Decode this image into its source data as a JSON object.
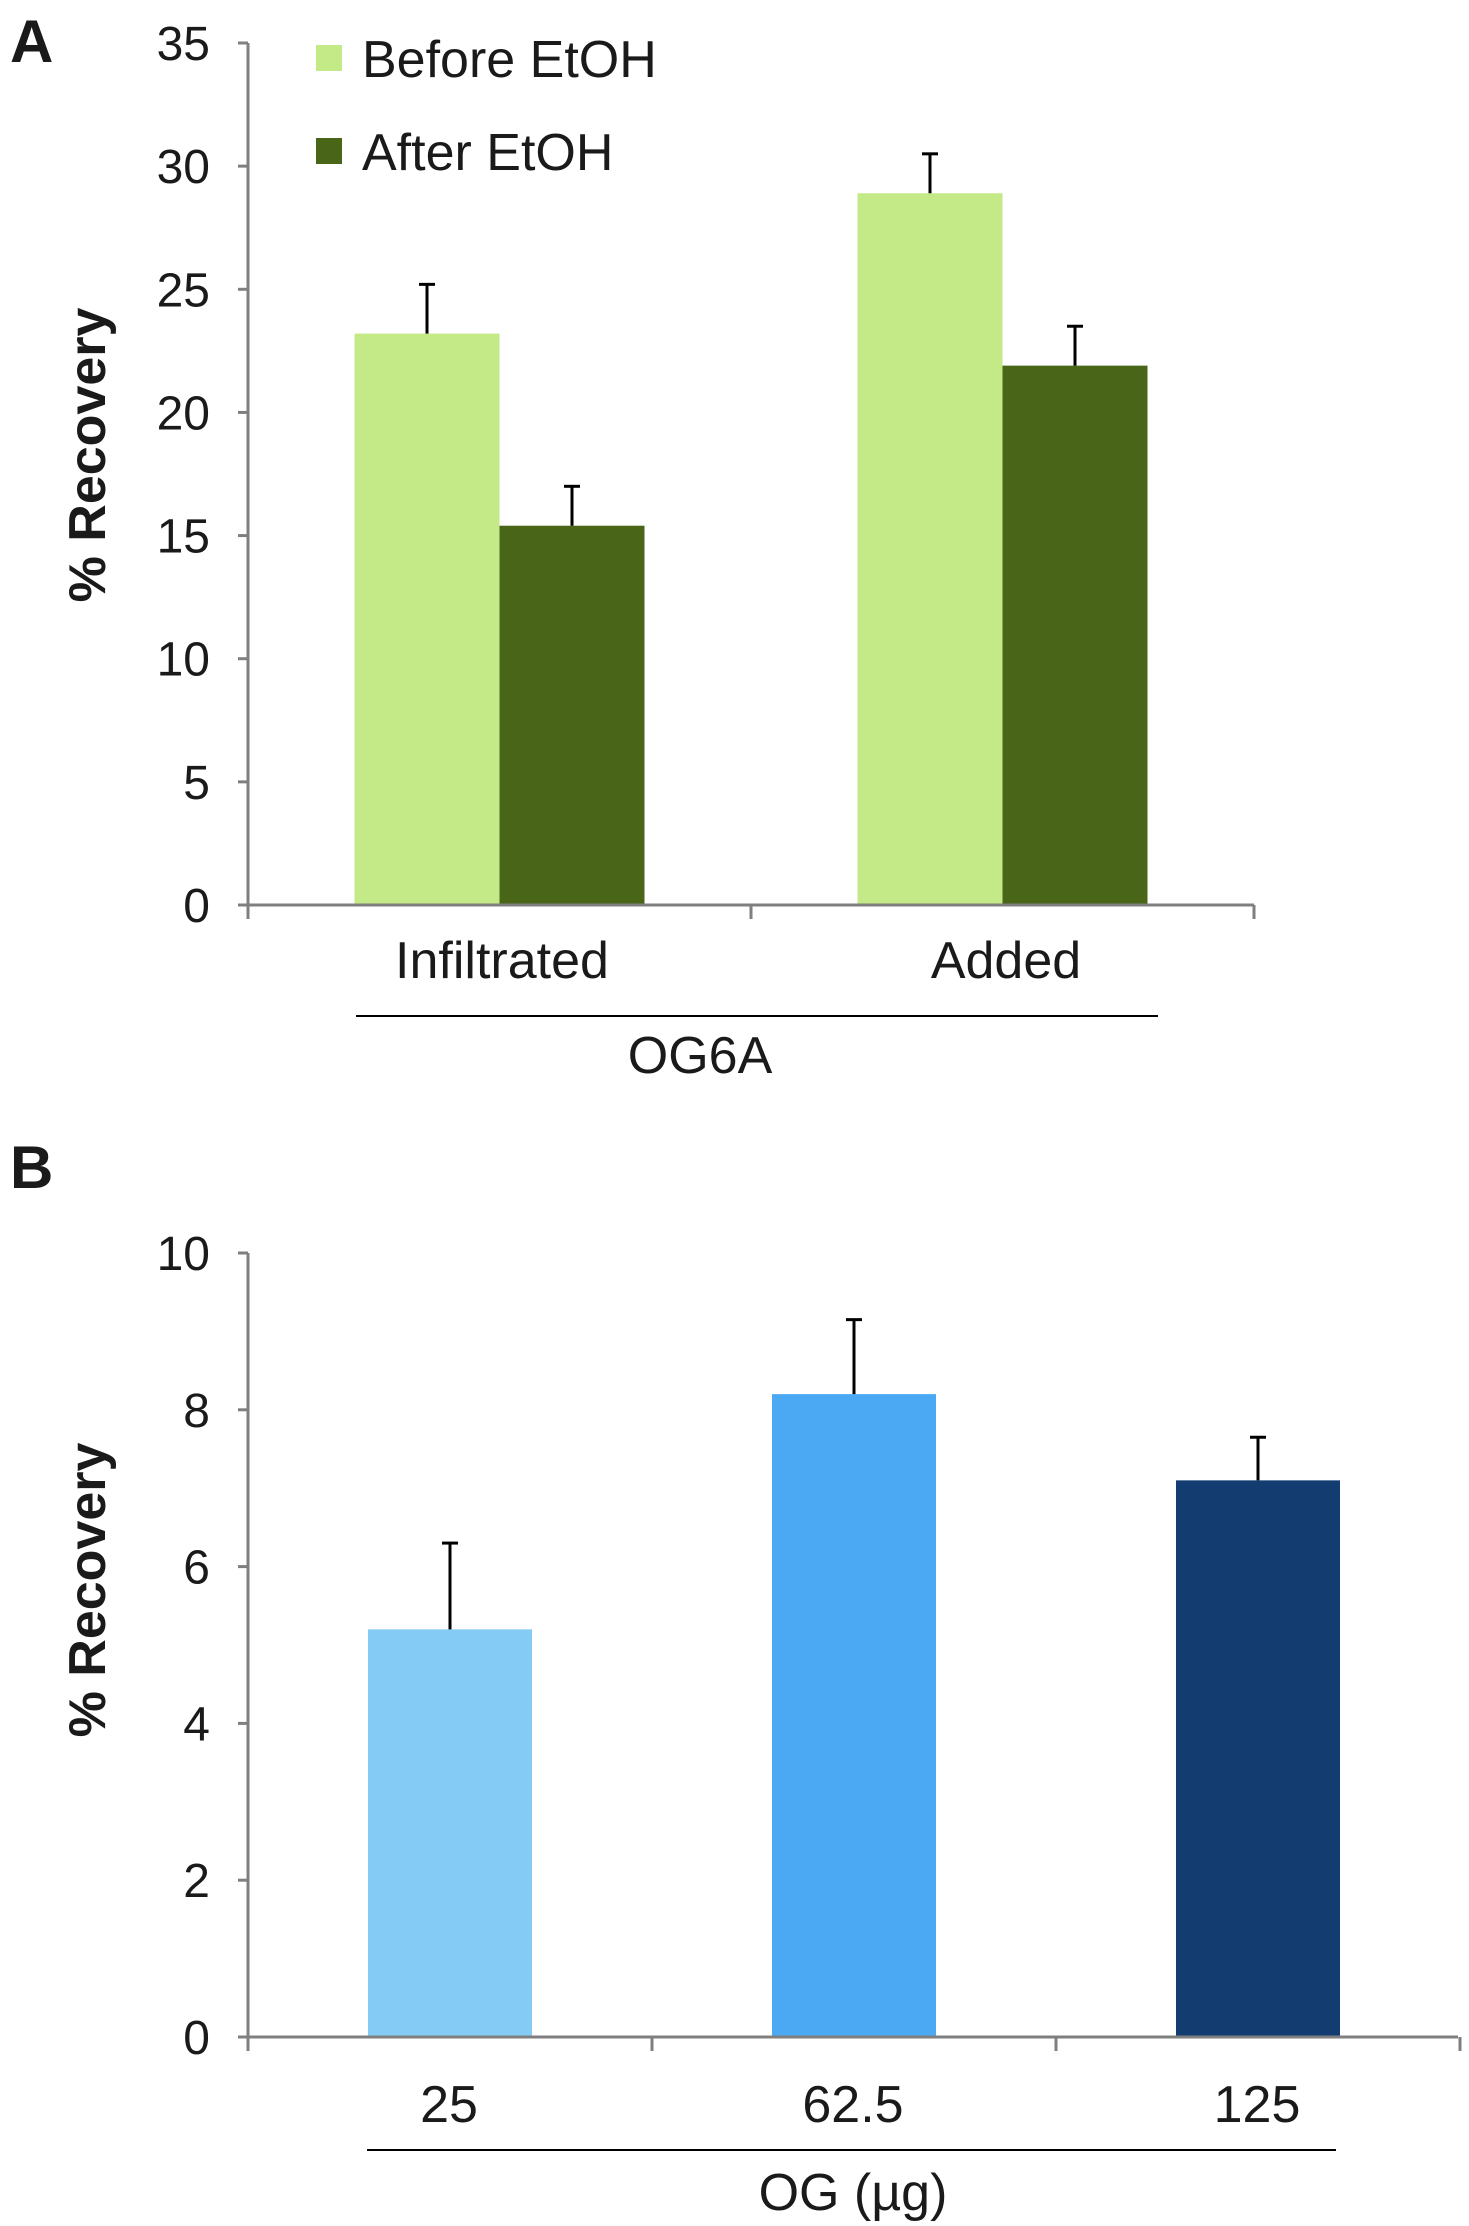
{
  "chart_data": [
    {
      "panel": "A",
      "type": "bar",
      "ylabel": "% Recovery",
      "ylim": [
        0,
        35
      ],
      "yticks": [
        0,
        5,
        10,
        15,
        20,
        25,
        30,
        35
      ],
      "categories": [
        "Infiltrated",
        "Added"
      ],
      "group_label": "OG6A",
      "legend_position": "top-left",
      "series": [
        {
          "name": "Before EtOH",
          "color": "#c3ea86",
          "values": [
            23.2,
            28.9
          ],
          "errors": [
            2.0,
            1.6
          ]
        },
        {
          "name": "After EtOH",
          "color": "#486518",
          "values": [
            15.4,
            21.9
          ],
          "errors": [
            1.6,
            1.6
          ]
        }
      ]
    },
    {
      "panel": "B",
      "type": "bar",
      "ylabel": "% Recovery",
      "ylim": [
        0,
        10
      ],
      "yticks": [
        0,
        2,
        4,
        6,
        8,
        10
      ],
      "categories": [
        "25",
        "62.5",
        "125"
      ],
      "group_label": "OG (µg)",
      "values": [
        5.2,
        8.2,
        7.1
      ],
      "errors": [
        1.1,
        0.95,
        0.55
      ],
      "colors": [
        "#84ccf6",
        "#4aa9f2",
        "#133d70"
      ]
    }
  ]
}
